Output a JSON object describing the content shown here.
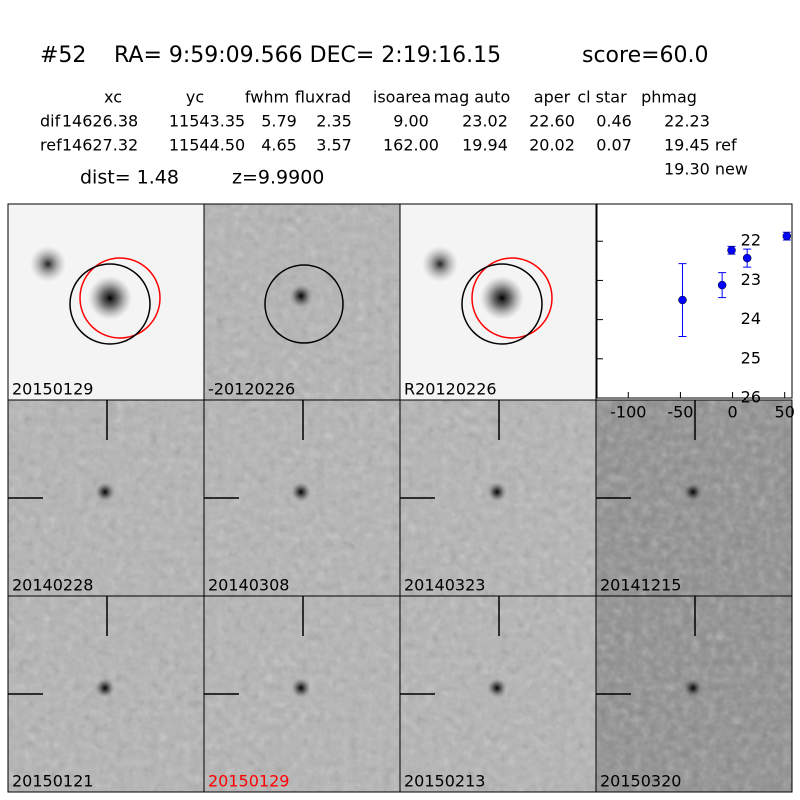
{
  "header": {
    "id": "#52",
    "coords": "RA= 9:59:09.566 DEC= 2:19:16.15",
    "score": "score=60.0"
  },
  "table": {
    "columns": [
      "xc",
      "yc",
      "fwhm",
      "fluxrad",
      "isoarea",
      "mag auto",
      "aper",
      "cl star",
      "phmag"
    ],
    "rows": [
      [
        "dif",
        "14626.38",
        "11543.35",
        "5.79",
        "2.35",
        "9.00",
        "23.02",
        "22.60",
        "0.46",
        "22.23"
      ],
      [
        "ref",
        "14627.32",
        "11544.50",
        "4.65",
        "3.57",
        "162.00",
        "19.94",
        "20.02",
        "0.07",
        "19.45 ref"
      ]
    ],
    "extra": "19.30 new",
    "dist": "dist=  1.48",
    "z": "z=9.9900"
  },
  "panels": [
    {
      "label": "20150129"
    },
    {
      "label": "-20120226"
    },
    {
      "label": "R20120226"
    },
    {
      "label": "20140228"
    },
    {
      "label": "20140308"
    },
    {
      "label": "20140323"
    },
    {
      "label": "20141215"
    },
    {
      "label": "20150121"
    },
    {
      "label": "20150129",
      "color": "#ff0000"
    },
    {
      "label": "20150213"
    },
    {
      "label": "20150320"
    }
  ],
  "chart_data": {
    "type": "scatter",
    "x": [
      -48,
      -10,
      -1,
      14,
      52
    ],
    "series": [
      {
        "color": "#0000ff",
        "values": [
          23.5,
          23.12,
          22.23,
          22.43,
          21.87
        ],
        "errors": [
          0.93,
          0.32,
          0.1,
          0.23,
          0.1
        ]
      }
    ],
    "xlim": [
      -130,
      57
    ],
    "xticks": [
      -100,
      -50,
      0,
      50
    ],
    "ylim": [
      26,
      21.05
    ],
    "yticks": [
      22,
      23,
      24,
      25,
      26
    ]
  }
}
